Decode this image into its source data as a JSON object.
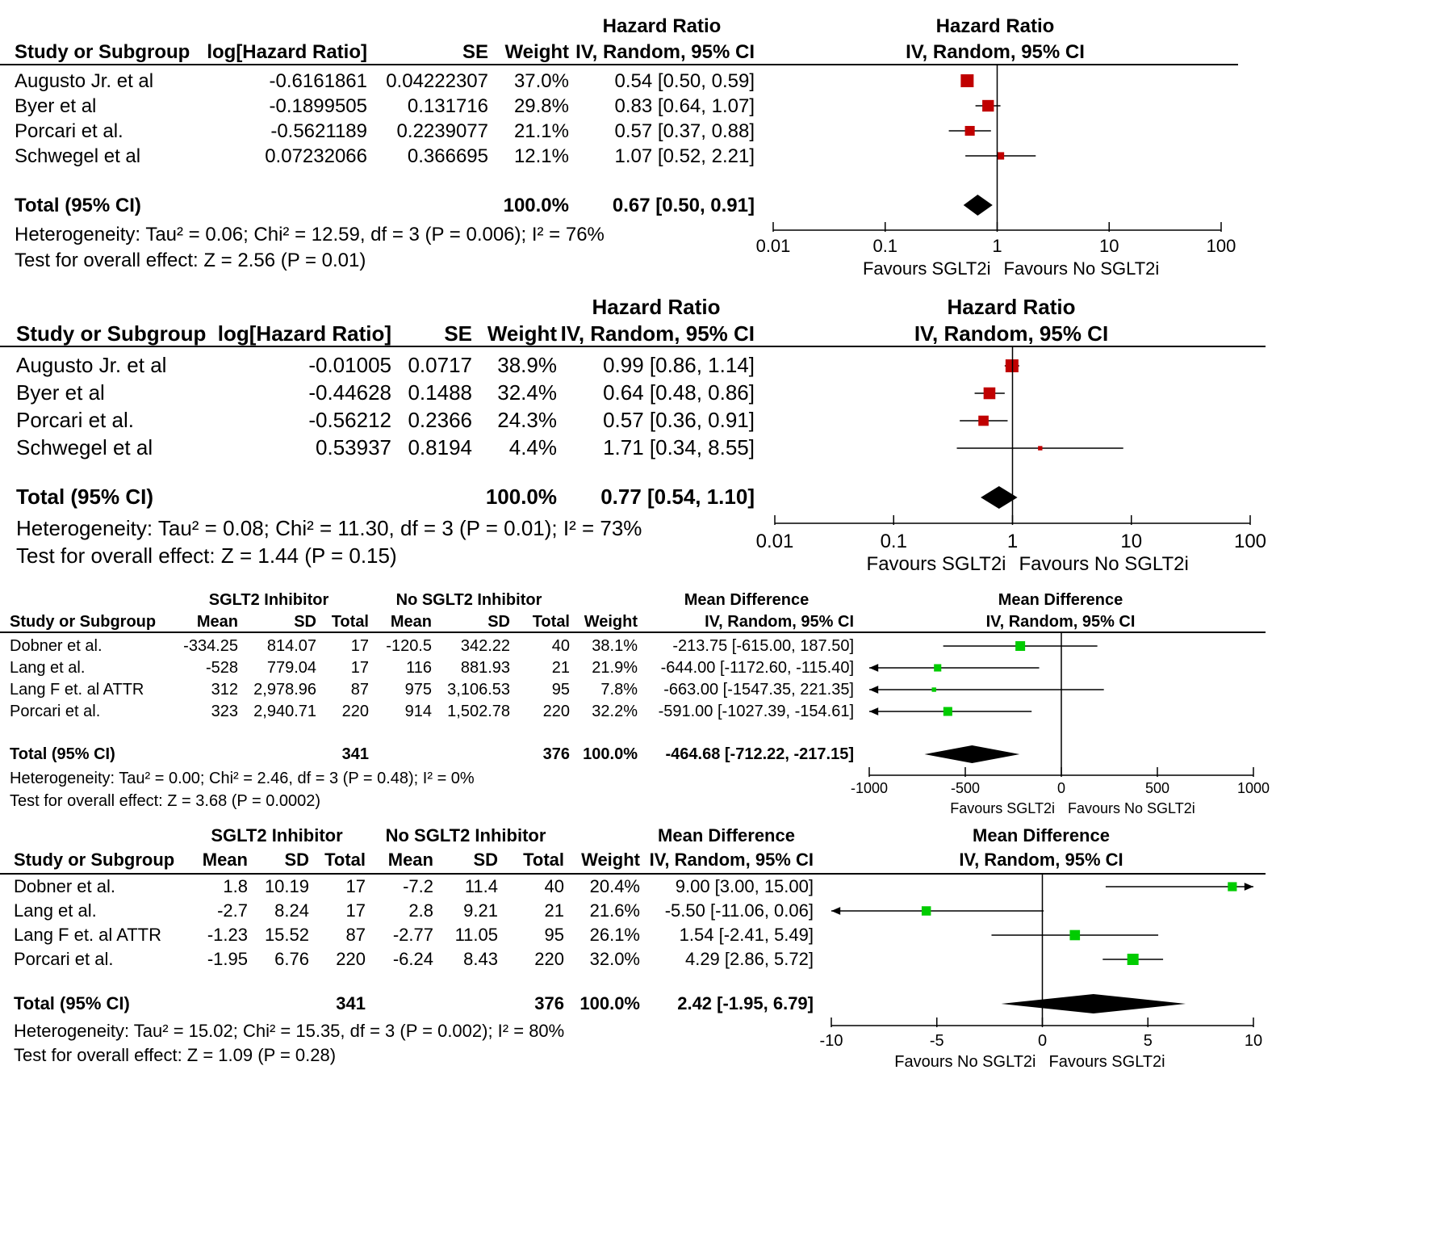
{
  "colors": {
    "hr_square": "#c00000",
    "md_square": "#00cc00",
    "line": "#000000"
  },
  "chart_data": [
    {
      "type": "forest",
      "measure": "Hazard Ratio",
      "method": "IV, Random, 95% CI",
      "scale": "log",
      "columns": {
        "study": "Study or Subgroup",
        "est": "log[Hazard Ratio]",
        "se": "SE",
        "weight": "Weight",
        "eff_h1": "Hazard Ratio",
        "eff_h2": "IV, Random, 95% CI"
      },
      "plot_header": {
        "h1": "Hazard Ratio",
        "h2": "IV, Random, 95% CI"
      },
      "studies": [
        {
          "name": "Augusto Jr. et al",
          "est": "-0.6161861",
          "se": "0.04222307",
          "weight": "37.0%",
          "ci_text": "0.54 [0.50, 0.59]",
          "value": 0.54,
          "lower": 0.5,
          "upper": 0.59,
          "w": 37.0
        },
        {
          "name": "Byer et al",
          "est": "-0.1899505",
          "se": "0.131716",
          "weight": "29.8%",
          "ci_text": "0.83 [0.64, 1.07]",
          "value": 0.83,
          "lower": 0.64,
          "upper": 1.07,
          "w": 29.8
        },
        {
          "name": "Porcari et al.",
          "est": "-0.5621189",
          "se": "0.2239077",
          "weight": "21.1%",
          "ci_text": "0.57 [0.37, 0.88]",
          "value": 0.57,
          "lower": 0.37,
          "upper": 0.88,
          "w": 21.1
        },
        {
          "name": "Schwegel et al",
          "est": "0.07232066",
          "se": "0.366695",
          "weight": "12.1%",
          "ci_text": "1.07 [0.52, 2.21]",
          "value": 1.07,
          "lower": 0.52,
          "upper": 2.21,
          "w": 12.1
        }
      ],
      "total": {
        "label": "Total (95% CI)",
        "weight": "100.0%",
        "ci_text": "0.67 [0.50, 0.91]",
        "value": 0.67,
        "lower": 0.5,
        "upper": 0.91
      },
      "heterogeneity": "Heterogeneity: Tau² = 0.06; Chi² = 12.59, df = 3 (P = 0.006); I² = 76%",
      "overall": "Test for overall effect: Z = 2.56 (P = 0.01)",
      "axis": {
        "ticks": [
          0.01,
          0.1,
          1,
          10,
          100
        ],
        "tick_labels": [
          "0.01",
          "0.1",
          "1",
          "10",
          "100"
        ],
        "xlim": [
          0.01,
          100
        ],
        "null": 1
      },
      "favours_left": "Favours SGLT2i",
      "favours_right": "Favours No SGLT2i"
    },
    {
      "type": "forest",
      "measure": "Hazard Ratio",
      "method": "IV, Random, 95% CI",
      "scale": "log",
      "columns": {
        "study": "Study or Subgroup",
        "est": "log[Hazard Ratio]",
        "se": "SE",
        "weight": "Weight",
        "eff_h1": "Hazard Ratio",
        "eff_h2": "IV, Random, 95% CI"
      },
      "plot_header": {
        "h1": "Hazard Ratio",
        "h2": "IV, Random, 95% CI"
      },
      "studies": [
        {
          "name": "Augusto Jr. et al",
          "est": "-0.01005",
          "se": "0.0717",
          "weight": "38.9%",
          "ci_text": "0.99 [0.86, 1.14]",
          "value": 0.99,
          "lower": 0.86,
          "upper": 1.14,
          "w": 38.9
        },
        {
          "name": "Byer et al",
          "est": "-0.44628",
          "se": "0.1488",
          "weight": "32.4%",
          "ci_text": "0.64 [0.48, 0.86]",
          "value": 0.64,
          "lower": 0.48,
          "upper": 0.86,
          "w": 32.4
        },
        {
          "name": "Porcari et al.",
          "est": "-0.56212",
          "se": "0.2366",
          "weight": "24.3%",
          "ci_text": "0.57 [0.36, 0.91]",
          "value": 0.57,
          "lower": 0.36,
          "upper": 0.91,
          "w": 24.3
        },
        {
          "name": "Schwegel et al",
          "est": "0.53937",
          "se": "0.8194",
          "weight": "4.4%",
          "ci_text": "1.71 [0.34, 8.55]",
          "value": 1.71,
          "lower": 0.34,
          "upper": 8.55,
          "w": 4.4
        }
      ],
      "total": {
        "label": "Total (95% CI)",
        "weight": "100.0%",
        "ci_text": "0.77 [0.54, 1.10]",
        "value": 0.77,
        "lower": 0.54,
        "upper": 1.1
      },
      "heterogeneity": "Heterogeneity: Tau² = 0.08; Chi² = 11.30, df = 3 (P = 0.01); I² = 73%",
      "overall": "Test for overall effect: Z = 1.44 (P = 0.15)",
      "axis": {
        "ticks": [
          0.01,
          0.1,
          1,
          10,
          100
        ],
        "tick_labels": [
          "0.01",
          "0.1",
          "1",
          "10",
          "100"
        ],
        "xlim": [
          0.01,
          100
        ],
        "null": 1
      },
      "favours_left": "Favours SGLT2i",
      "favours_right": "Favours No SGLT2i"
    },
    {
      "type": "forest",
      "measure": "Mean Difference",
      "method": "IV, Random, 95% CI",
      "scale": "linear",
      "columns": {
        "group1": "SGLT2 Inhibitor",
        "group2": "No SGLT2 Inhibitor",
        "study": "Study or Subgroup",
        "mean": "Mean",
        "sd": "SD",
        "total": "Total",
        "weight": "Weight",
        "eff_h1": "Mean Difference",
        "eff_h2": "IV, Random, 95% CI"
      },
      "plot_header": {
        "h1": "Mean Difference",
        "h2": "IV, Random, 95% CI"
      },
      "studies": [
        {
          "name": "Dobner et al.",
          "m1": "-334.25",
          "sd1": "814.07",
          "n1": "17",
          "m2": "-120.5",
          "sd2": "342.22",
          "n2": "40",
          "weight": "38.1%",
          "ci_text": "-213.75 [-615.00, 187.50]",
          "value": -213.75,
          "lower": -615.0,
          "upper": 187.5,
          "w": 38.1
        },
        {
          "name": "Lang et al.",
          "m1": "-528",
          "sd1": "779.04",
          "n1": "17",
          "m2": "116",
          "sd2": "881.93",
          "n2": "21",
          "weight": "21.9%",
          "ci_text": "-644.00 [-1172.60, -115.40]",
          "value": -644.0,
          "lower": -1172.6,
          "upper": -115.4,
          "w": 21.9
        },
        {
          "name": "Lang F et. al ATTR",
          "m1": "312",
          "sd1": "2,978.96",
          "n1": "87",
          "m2": "975",
          "sd2": "3,106.53",
          "n2": "95",
          "weight": "7.8%",
          "ci_text": "-663.00 [-1547.35, 221.35]",
          "value": -663.0,
          "lower": -1547.35,
          "upper": 221.35,
          "w": 7.8
        },
        {
          "name": "Porcari et al.",
          "m1": "323",
          "sd1": "2,940.71",
          "n1": "220",
          "m2": "914",
          "sd2": "1,502.78",
          "n2": "220",
          "weight": "32.2%",
          "ci_text": "-591.00 [-1027.39, -154.61]",
          "value": -591.0,
          "lower": -1027.39,
          "upper": -154.61,
          "w": 32.2
        }
      ],
      "total": {
        "label": "Total (95% CI)",
        "n1": "341",
        "n2": "376",
        "weight": "100.0%",
        "ci_text": "-464.68 [-712.22, -217.15]",
        "value": -464.68,
        "lower": -712.22,
        "upper": -217.15
      },
      "heterogeneity": "Heterogeneity: Tau² = 0.00; Chi² = 2.46, df = 3 (P = 0.48); I² = 0%",
      "overall": "Test for overall effect: Z = 3.68 (P = 0.0002)",
      "axis": {
        "ticks": [
          -1000,
          -500,
          0,
          500,
          1000
        ],
        "tick_labels": [
          "-1000",
          "-500",
          "0",
          "500",
          "1000"
        ],
        "xlim": [
          -1000,
          1000
        ],
        "null": 0
      },
      "favours_left": "Favours SGLT2i",
      "favours_right": "Favours No SGLT2i"
    },
    {
      "type": "forest",
      "measure": "Mean Difference",
      "method": "IV, Random, 95% CI",
      "scale": "linear",
      "columns": {
        "group1": "SGLT2 Inhibitor",
        "group2": "No SGLT2 Inhibitor",
        "study": "Study or Subgroup",
        "mean": "Mean",
        "sd": "SD",
        "total": "Total",
        "weight": "Weight",
        "eff_h1": "Mean Difference",
        "eff_h2": "IV, Random, 95% CI"
      },
      "plot_header": {
        "h1": "Mean Difference",
        "h2": "IV, Random, 95% CI"
      },
      "studies": [
        {
          "name": "Dobner et al.",
          "m1": "1.8",
          "sd1": "10.19",
          "n1": "17",
          "m2": "-7.2",
          "sd2": "11.4",
          "n2": "40",
          "weight": "20.4%",
          "ci_text": "9.00 [3.00, 15.00]",
          "value": 9.0,
          "lower": 3.0,
          "upper": 15.0,
          "w": 20.4
        },
        {
          "name": "Lang et al.",
          "m1": "-2.7",
          "sd1": "8.24",
          "n1": "17",
          "m2": "2.8",
          "sd2": "9.21",
          "n2": "21",
          "weight": "21.6%",
          "ci_text": "-5.50 [-11.06, 0.06]",
          "value": -5.5,
          "lower": -11.06,
          "upper": 0.06,
          "w": 21.6
        },
        {
          "name": "Lang F et. al ATTR",
          "m1": "-1.23",
          "sd1": "15.52",
          "n1": "87",
          "m2": "-2.77",
          "sd2": "11.05",
          "n2": "95",
          "weight": "26.1%",
          "ci_text": "1.54 [-2.41, 5.49]",
          "value": 1.54,
          "lower": -2.41,
          "upper": 5.49,
          "w": 26.1
        },
        {
          "name": "Porcari et al.",
          "m1": "-1.95",
          "sd1": "6.76",
          "n1": "220",
          "m2": "-6.24",
          "sd2": "8.43",
          "n2": "220",
          "weight": "32.0%",
          "ci_text": "4.29 [2.86, 5.72]",
          "value": 4.29,
          "lower": 2.86,
          "upper": 5.72,
          "w": 32.0
        }
      ],
      "total": {
        "label": "Total (95% CI)",
        "n1": "341",
        "n2": "376",
        "weight": "100.0%",
        "ci_text": "2.42 [-1.95, 6.79]",
        "value": 2.42,
        "lower": -1.95,
        "upper": 6.79
      },
      "heterogeneity": "Heterogeneity: Tau² = 15.02; Chi² = 15.35, df = 3 (P = 0.002); I² = 80%",
      "overall": "Test for overall effect: Z = 1.09 (P = 0.28)",
      "axis": {
        "ticks": [
          -10,
          -5,
          0,
          5,
          10
        ],
        "tick_labels": [
          "-10",
          "-5",
          "0",
          "5",
          "10"
        ],
        "xlim": [
          -10,
          10
        ],
        "null": 0
      },
      "favours_left": "Favours No SGLT2i",
      "favours_right": "Favours SGLT2i"
    }
  ]
}
